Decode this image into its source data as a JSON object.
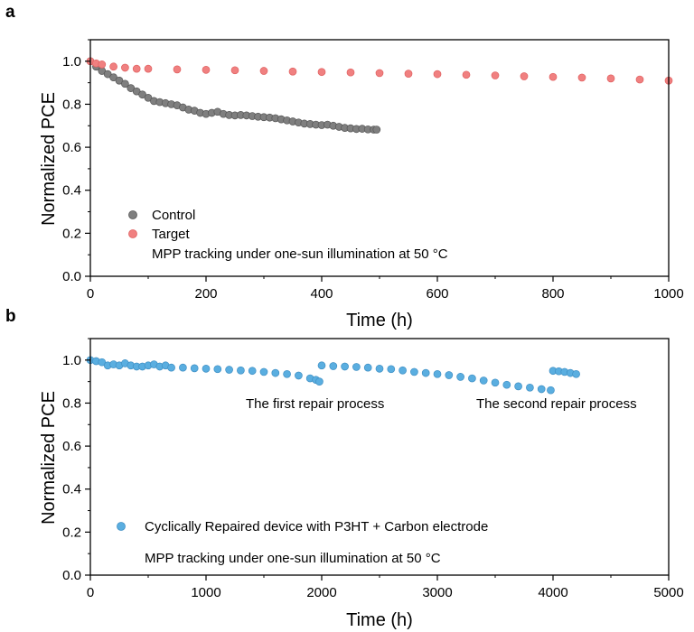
{
  "chart_data": [
    {
      "panel": "a",
      "type": "scatter",
      "xlabel": "Time (h)",
      "ylabel": "Normalized PCE",
      "xlim": [
        0,
        1000
      ],
      "ylim": [
        0.0,
        1.1
      ],
      "xticks": [
        0,
        200,
        400,
        600,
        800,
        1000
      ],
      "yticks": [
        0.0,
        0.2,
        0.4,
        0.6,
        0.8,
        1.0
      ],
      "ytick_labels": [
        "0.0",
        "0.2",
        "0.4",
        "0.6",
        "0.8",
        "1.0"
      ],
      "legend": {
        "placement": "bottom-left"
      },
      "annotations": [
        "MPP tracking under one-sun illumination at 50 °C"
      ],
      "series": [
        {
          "name": "Control",
          "color": "#7f7f7f",
          "points": [
            [
              0,
              1.0
            ],
            [
              10,
              0.975
            ],
            [
              20,
              0.955
            ],
            [
              30,
              0.94
            ],
            [
              40,
              0.925
            ],
            [
              50,
              0.91
            ],
            [
              60,
              0.895
            ],
            [
              70,
              0.875
            ],
            [
              80,
              0.86
            ],
            [
              90,
              0.845
            ],
            [
              100,
              0.83
            ],
            [
              110,
              0.815
            ],
            [
              120,
              0.81
            ],
            [
              130,
              0.805
            ],
            [
              140,
              0.8
            ],
            [
              150,
              0.795
            ],
            [
              160,
              0.785
            ],
            [
              170,
              0.775
            ],
            [
              180,
              0.77
            ],
            [
              190,
              0.76
            ],
            [
              200,
              0.755
            ],
            [
              210,
              0.76
            ],
            [
              220,
              0.765
            ],
            [
              230,
              0.755
            ],
            [
              240,
              0.75
            ],
            [
              250,
              0.748
            ],
            [
              260,
              0.75
            ],
            [
              270,
              0.748
            ],
            [
              280,
              0.745
            ],
            [
              290,
              0.742
            ],
            [
              300,
              0.74
            ],
            [
              310,
              0.738
            ],
            [
              320,
              0.735
            ],
            [
              330,
              0.73
            ],
            [
              340,
              0.725
            ],
            [
              350,
              0.72
            ],
            [
              360,
              0.715
            ],
            [
              370,
              0.71
            ],
            [
              380,
              0.708
            ],
            [
              390,
              0.705
            ],
            [
              400,
              0.703
            ],
            [
              410,
              0.705
            ],
            [
              420,
              0.7
            ],
            [
              430,
              0.695
            ],
            [
              440,
              0.69
            ],
            [
              450,
              0.688
            ],
            [
              460,
              0.685
            ],
            [
              470,
              0.686
            ],
            [
              480,
              0.683
            ],
            [
              490,
              0.682
            ],
            [
              495,
              0.682
            ]
          ]
        },
        {
          "name": "Target",
          "color": "#f08080",
          "points": [
            [
              0,
              1.0
            ],
            [
              10,
              0.99
            ],
            [
              20,
              0.985
            ],
            [
              40,
              0.975
            ],
            [
              60,
              0.97
            ],
            [
              80,
              0.965
            ],
            [
              100,
              0.965
            ],
            [
              150,
              0.962
            ],
            [
              200,
              0.96
            ],
            [
              250,
              0.958
            ],
            [
              300,
              0.955
            ],
            [
              350,
              0.952
            ],
            [
              400,
              0.95
            ],
            [
              450,
              0.948
            ],
            [
              500,
              0.945
            ],
            [
              550,
              0.942
            ],
            [
              600,
              0.94
            ],
            [
              650,
              0.937
            ],
            [
              700,
              0.934
            ],
            [
              750,
              0.93
            ],
            [
              800,
              0.927
            ],
            [
              850,
              0.924
            ],
            [
              900,
              0.92
            ],
            [
              950,
              0.915
            ],
            [
              1000,
              0.91
            ]
          ]
        }
      ]
    },
    {
      "panel": "b",
      "type": "scatter",
      "xlabel": "Time (h)",
      "ylabel": "Normalized PCE",
      "xlim": [
        0,
        5000
      ],
      "ylim": [
        0.0,
        1.1
      ],
      "xticks": [
        0,
        1000,
        2000,
        3000,
        4000,
        5000
      ],
      "yticks": [
        0.0,
        0.2,
        0.4,
        0.6,
        0.8,
        1.0
      ],
      "ytick_labels": [
        "0.0",
        "0.2",
        "0.4",
        "0.6",
        "0.8",
        "1.0"
      ],
      "legend": {
        "placement": "bottom-left"
      },
      "annotations": [
        "The first repair process",
        "The second repair process",
        "MPP tracking under one-sun illumination at 50 °C"
      ],
      "series": [
        {
          "name": "Cyclically Repaired device with P3HT + Carbon electrode",
          "color": "#5aaee0",
          "points": [
            [
              0,
              1.0
            ],
            [
              50,
              0.995
            ],
            [
              100,
              0.99
            ],
            [
              150,
              0.975
            ],
            [
              200,
              0.98
            ],
            [
              250,
              0.975
            ],
            [
              300,
              0.985
            ],
            [
              350,
              0.975
            ],
            [
              400,
              0.97
            ],
            [
              450,
              0.97
            ],
            [
              500,
              0.975
            ],
            [
              550,
              0.98
            ],
            [
              600,
              0.97
            ],
            [
              650,
              0.975
            ],
            [
              700,
              0.965
            ],
            [
              800,
              0.965
            ],
            [
              900,
              0.962
            ],
            [
              1000,
              0.96
            ],
            [
              1100,
              0.958
            ],
            [
              1200,
              0.955
            ],
            [
              1300,
              0.952
            ],
            [
              1400,
              0.95
            ],
            [
              1500,
              0.945
            ],
            [
              1600,
              0.94
            ],
            [
              1700,
              0.935
            ],
            [
              1800,
              0.928
            ],
            [
              1900,
              0.915
            ],
            [
              1950,
              0.908
            ],
            [
              1980,
              0.9
            ],
            [
              2000,
              0.975
            ],
            [
              2100,
              0.972
            ],
            [
              2200,
              0.97
            ],
            [
              2300,
              0.968
            ],
            [
              2400,
              0.965
            ],
            [
              2500,
              0.96
            ],
            [
              2600,
              0.958
            ],
            [
              2700,
              0.952
            ],
            [
              2800,
              0.945
            ],
            [
              2900,
              0.94
            ],
            [
              3000,
              0.935
            ],
            [
              3100,
              0.93
            ],
            [
              3200,
              0.922
            ],
            [
              3300,
              0.915
            ],
            [
              3400,
              0.905
            ],
            [
              3500,
              0.895
            ],
            [
              3600,
              0.885
            ],
            [
              3700,
              0.878
            ],
            [
              3800,
              0.872
            ],
            [
              3900,
              0.865
            ],
            [
              3980,
              0.86
            ],
            [
              4000,
              0.95
            ],
            [
              4050,
              0.948
            ],
            [
              4100,
              0.945
            ],
            [
              4150,
              0.94
            ],
            [
              4200,
              0.935
            ]
          ]
        }
      ]
    }
  ]
}
